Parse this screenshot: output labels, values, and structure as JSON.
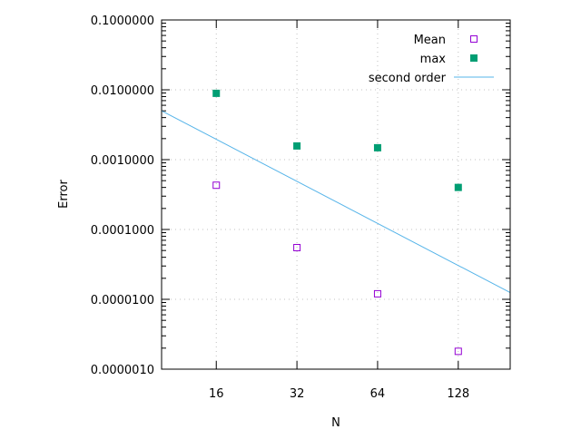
{
  "chart_data": {
    "type": "scatter",
    "title": "",
    "xlabel": "N",
    "ylabel": "Error",
    "x_scale": "log2",
    "y_scale": "log10",
    "xlim": [
      10,
      200
    ],
    "ylim": [
      1e-06,
      0.1
    ],
    "x_ticks": [
      16,
      32,
      64,
      128
    ],
    "x_tick_labels": [
      "16",
      "32",
      "64",
      "128"
    ],
    "y_ticks": [
      0.1,
      0.01,
      0.001,
      0.0001,
      1e-05,
      1e-06
    ],
    "y_tick_labels": [
      "0.1000000",
      "0.0100000",
      "0.0010000",
      "0.0001000",
      "0.0000100",
      "0.0000010"
    ],
    "grid": true,
    "legend_position": "top-right",
    "series": [
      {
        "name": "Mean",
        "style": "open-square",
        "color": "#9400d3",
        "x": [
          16,
          32,
          64,
          128
        ],
        "y": [
          0.00043,
          5.5e-05,
          1.2e-05,
          1.8e-06
        ]
      },
      {
        "name": "max",
        "style": "filled-square",
        "color": "#009e73",
        "x": [
          16,
          32,
          64,
          128
        ],
        "y": [
          0.0089,
          0.00157,
          0.00148,
          0.0004
        ]
      },
      {
        "name": "second order",
        "style": "line",
        "color": "#56b4e9",
        "function": "0.5/N^2"
      }
    ]
  }
}
